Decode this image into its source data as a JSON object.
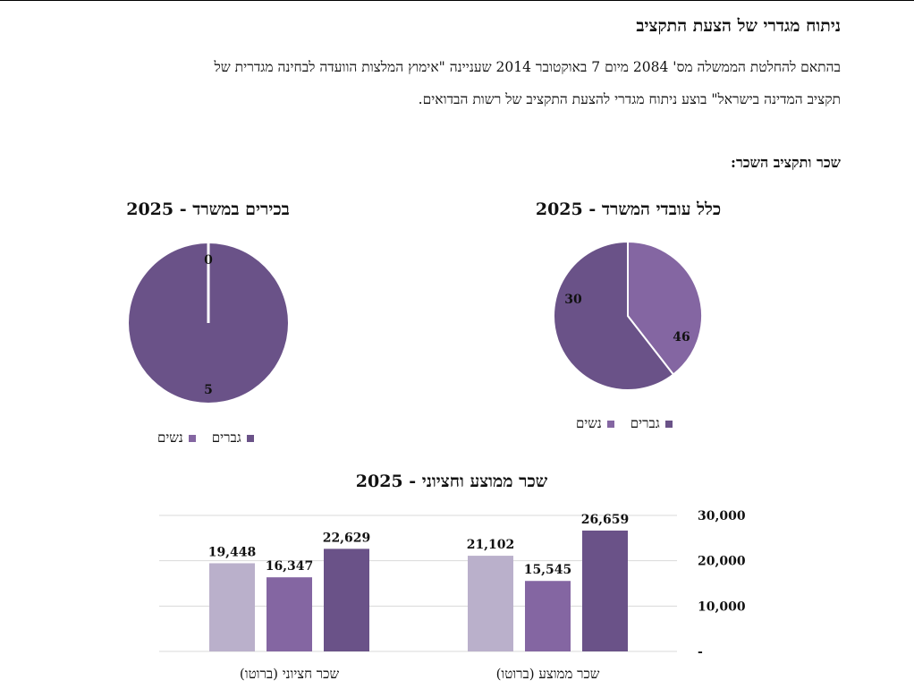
{
  "document": {
    "title": "ניתוח מגדרי של הצעת התקציב",
    "paragraph_line1": "בהתאם להחלטת הממשלה מס' 2084 מיום 7 באוקטובר 2014 שעניינה \"אימוץ המלצות הוועדה לבחינה מגדרית של",
    "paragraph_line2": "תקציב המדינה בישראל\" בוצע ניתוח מגדרי להצעת התקציב של רשות הבדואים.",
    "section_title": "שכר ותקציב השכר:"
  },
  "colors": {
    "men": "#6a5288",
    "women": "#8466a2",
    "light": "#bab0cb",
    "grid": "#d9d9d9"
  },
  "legend": {
    "men": "גברים",
    "women": "נשים"
  },
  "chart_data": [
    {
      "type": "pie",
      "title": "בכירים במשרד - 2025",
      "labels": [
        "גברים",
        "נשים"
      ],
      "values": [
        5,
        0
      ]
    },
    {
      "type": "pie",
      "title": "כלל עובדי המשרד - 2025",
      "labels": [
        "גברים",
        "נשים"
      ],
      "values": [
        46,
        30
      ]
    },
    {
      "type": "bar",
      "title": "שכר ממוצע וחציוני - 2025",
      "categories": [
        "שכר ממוצע (ברוטו)",
        "שכר חציוני (ברוטו)"
      ],
      "series": [
        {
          "values": [
            21102,
            19448
          ]
        },
        {
          "values": [
            15545,
            16347
          ]
        },
        {
          "values": [
            26659,
            22629
          ]
        }
      ],
      "ylim": [
        0,
        30000
      ],
      "yticks": [
        0,
        10000,
        20000,
        30000
      ],
      "ytick_labels": [
        "-",
        "10,000",
        "20,000",
        "30,000"
      ],
      "grid": true
    }
  ]
}
